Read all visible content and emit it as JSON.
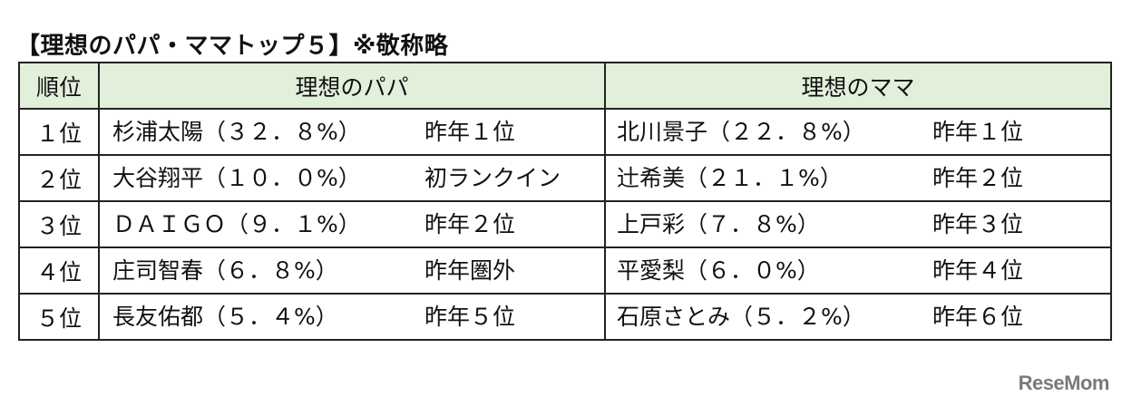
{
  "title": "【理想のパパ・ママトップ５】※敬称略",
  "table": {
    "headers": {
      "rank": "順位",
      "papa": "理想のパパ",
      "mama": "理想のママ"
    },
    "rows": [
      {
        "rank": "１位",
        "papa_name": "杉浦太陽（３２．８%）",
        "papa_prev": "昨年１位",
        "mama_name": "北川景子（２２．８%）",
        "mama_prev": "昨年１位"
      },
      {
        "rank": "２位",
        "papa_name": "大谷翔平（１０．０%）",
        "papa_prev": "初ランクイン",
        "mama_name": "辻希美（２１．１%）",
        "mama_prev": "昨年２位"
      },
      {
        "rank": "３位",
        "papa_name": "ＤＡＩＧＯ（９．１%）",
        "papa_prev": "昨年２位",
        "mama_name": "上戸彩（７．８%）",
        "mama_prev": "昨年３位"
      },
      {
        "rank": "４位",
        "papa_name": "庄司智春（６．８%）",
        "papa_prev": "昨年圏外",
        "mama_name": "平愛梨（６．０%）",
        "mama_prev": "昨年４位"
      },
      {
        "rank": "５位",
        "papa_name": "長友佑都（５．４%）",
        "papa_prev": "昨年５位",
        "mama_name": "石原さとみ（５．２%）",
        "mama_prev": "昨年６位"
      }
    ]
  },
  "logo": "ReseMom",
  "colors": {
    "header_bg": "#e2efda",
    "logo": "#7a7a7a"
  }
}
